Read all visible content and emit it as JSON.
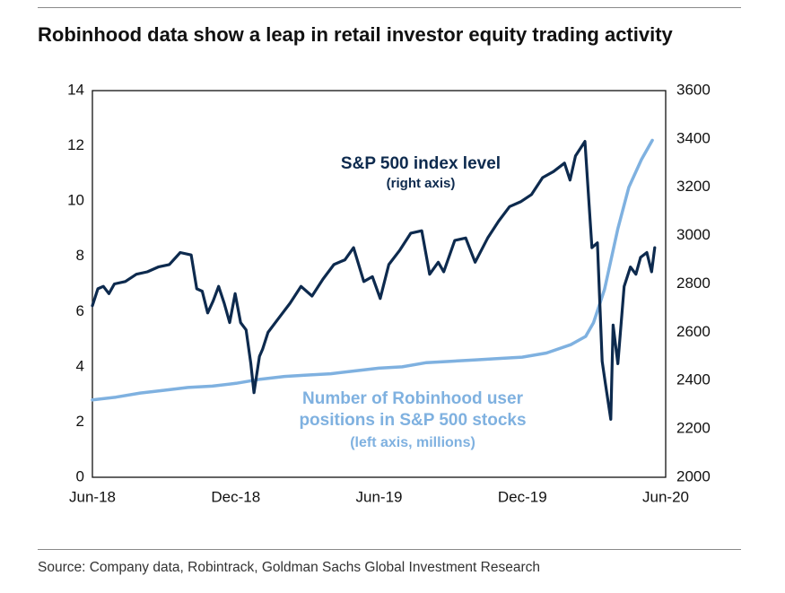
{
  "title": "Robinhood data show a leap in retail investor equity trading activity",
  "source": "Source: Company data, Robintrack, Goldman Sachs Global Investment Research",
  "colors": {
    "sp500": "#0d2a4e",
    "robinhood": "#7fb1e0",
    "axis": "#111111"
  },
  "chart_data": {
    "type": "line",
    "x_ticks": [
      "Jun-18",
      "Dec-18",
      "Jun-19",
      "Dec-19",
      "Jun-20"
    ],
    "x_range": [
      "2018-06-01",
      "2020-06-01"
    ],
    "y_left": {
      "ylim": [
        0,
        14
      ],
      "ticks": [
        0,
        2,
        4,
        6,
        8,
        10,
        12,
        14
      ]
    },
    "y_right": {
      "ylim": [
        2000,
        3600
      ],
      "ticks": [
        2000,
        2200,
        2400,
        2600,
        2800,
        3000,
        3200,
        3400,
        3600
      ]
    },
    "grid": false,
    "series": [
      {
        "axis": "right",
        "points": [
          [
            "2018-06-01",
            2710
          ],
          [
            "2018-06-08",
            2780
          ],
          [
            "2018-06-15",
            2790
          ],
          [
            "2018-06-22",
            2760
          ],
          [
            "2018-06-29",
            2800
          ],
          [
            "2018-07-13",
            2810
          ],
          [
            "2018-07-27",
            2840
          ],
          [
            "2018-08-10",
            2850
          ],
          [
            "2018-08-24",
            2870
          ],
          [
            "2018-09-07",
            2880
          ],
          [
            "2018-09-21",
            2930
          ],
          [
            "2018-10-05",
            2920
          ],
          [
            "2018-10-12",
            2780
          ],
          [
            "2018-10-19",
            2770
          ],
          [
            "2018-10-26",
            2680
          ],
          [
            "2018-11-02",
            2730
          ],
          [
            "2018-11-09",
            2790
          ],
          [
            "2018-11-16",
            2720
          ],
          [
            "2018-11-23",
            2640
          ],
          [
            "2018-11-30",
            2760
          ],
          [
            "2018-12-07",
            2640
          ],
          [
            "2018-12-14",
            2610
          ],
          [
            "2018-12-20",
            2470
          ],
          [
            "2018-12-24",
            2350
          ],
          [
            "2018-12-31",
            2500
          ],
          [
            "2019-01-04",
            2530
          ],
          [
            "2019-01-11",
            2600
          ],
          [
            "2019-01-25",
            2660
          ],
          [
            "2019-02-08",
            2720
          ],
          [
            "2019-02-22",
            2790
          ],
          [
            "2019-03-08",
            2750
          ],
          [
            "2019-03-22",
            2820
          ],
          [
            "2019-04-05",
            2880
          ],
          [
            "2019-04-19",
            2900
          ],
          [
            "2019-04-30",
            2950
          ],
          [
            "2019-05-13",
            2810
          ],
          [
            "2019-05-24",
            2830
          ],
          [
            "2019-06-03",
            2740
          ],
          [
            "2019-06-14",
            2880
          ],
          [
            "2019-06-28",
            2940
          ],
          [
            "2019-07-12",
            3010
          ],
          [
            "2019-07-26",
            3020
          ],
          [
            "2019-08-05",
            2840
          ],
          [
            "2019-08-16",
            2890
          ],
          [
            "2019-08-23",
            2850
          ],
          [
            "2019-09-06",
            2980
          ],
          [
            "2019-09-20",
            2990
          ],
          [
            "2019-10-02",
            2890
          ],
          [
            "2019-10-18",
            2990
          ],
          [
            "2019-11-01",
            3060
          ],
          [
            "2019-11-15",
            3120
          ],
          [
            "2019-11-29",
            3140
          ],
          [
            "2019-12-13",
            3170
          ],
          [
            "2019-12-27",
            3240
          ],
          [
            "2020-01-10",
            3265
          ],
          [
            "2020-01-24",
            3300
          ],
          [
            "2020-01-31",
            3230
          ],
          [
            "2020-02-07",
            3330
          ],
          [
            "2020-02-19",
            3390
          ],
          [
            "2020-02-28",
            2950
          ],
          [
            "2020-03-06",
            2970
          ],
          [
            "2020-03-12",
            2480
          ],
          [
            "2020-03-16",
            2390
          ],
          [
            "2020-03-23",
            2240
          ],
          [
            "2020-03-26",
            2630
          ],
          [
            "2020-04-01",
            2470
          ],
          [
            "2020-04-09",
            2790
          ],
          [
            "2020-04-17",
            2870
          ],
          [
            "2020-04-24",
            2840
          ],
          [
            "2020-04-30",
            2910
          ],
          [
            "2020-05-08",
            2930
          ],
          [
            "2020-05-14",
            2850
          ],
          [
            "2020-05-18",
            2950
          ]
        ]
      },
      {
        "axis": "left",
        "points": [
          [
            "2018-06-01",
            2.8
          ],
          [
            "2018-07-01",
            2.9
          ],
          [
            "2018-08-01",
            3.05
          ],
          [
            "2018-09-01",
            3.15
          ],
          [
            "2018-10-01",
            3.25
          ],
          [
            "2018-11-01",
            3.3
          ],
          [
            "2018-12-01",
            3.4
          ],
          [
            "2019-01-01",
            3.55
          ],
          [
            "2019-02-01",
            3.65
          ],
          [
            "2019-03-01",
            3.7
          ],
          [
            "2019-04-01",
            3.75
          ],
          [
            "2019-05-01",
            3.85
          ],
          [
            "2019-06-01",
            3.95
          ],
          [
            "2019-07-01",
            4.0
          ],
          [
            "2019-08-01",
            4.15
          ],
          [
            "2019-09-01",
            4.2
          ],
          [
            "2019-10-01",
            4.25
          ],
          [
            "2019-11-01",
            4.3
          ],
          [
            "2019-12-01",
            4.35
          ],
          [
            "2020-01-01",
            4.5
          ],
          [
            "2020-02-01",
            4.8
          ],
          [
            "2020-02-20",
            5.1
          ],
          [
            "2020-03-01",
            5.6
          ],
          [
            "2020-03-15",
            6.8
          ],
          [
            "2020-04-01",
            9.0
          ],
          [
            "2020-04-15",
            10.5
          ],
          [
            "2020-05-01",
            11.5
          ],
          [
            "2020-05-15",
            12.2
          ]
        ]
      }
    ],
    "annotations": [
      {
        "lines": [
          "S&P 500 index level",
          "(right axis)"
        ],
        "series": 0
      },
      {
        "lines": [
          "Number of Robinhood user",
          "positions in S&P 500 stocks",
          "(left axis, millions)"
        ],
        "series": 1
      }
    ]
  }
}
